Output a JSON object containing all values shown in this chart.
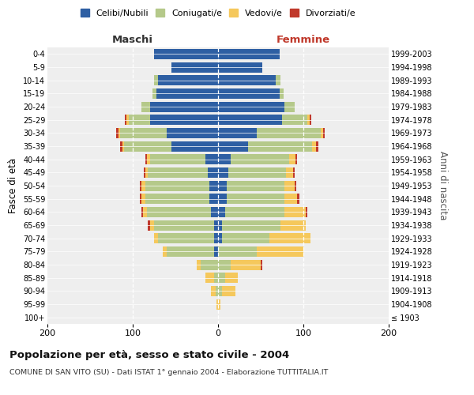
{
  "age_groups": [
    "100+",
    "95-99",
    "90-94",
    "85-89",
    "80-84",
    "75-79",
    "70-74",
    "65-69",
    "60-64",
    "55-59",
    "50-54",
    "45-49",
    "40-44",
    "35-39",
    "30-34",
    "25-29",
    "20-24",
    "15-19",
    "10-14",
    "5-9",
    "0-4"
  ],
  "birth_years": [
    "≤ 1903",
    "1904-1908",
    "1909-1913",
    "1914-1918",
    "1919-1923",
    "1924-1928",
    "1929-1933",
    "1934-1938",
    "1939-1943",
    "1944-1948",
    "1949-1953",
    "1954-1958",
    "1959-1963",
    "1964-1968",
    "1969-1973",
    "1974-1978",
    "1979-1983",
    "1984-1988",
    "1989-1993",
    "1994-1998",
    "1999-2003"
  ],
  "male": {
    "celibi": [
      0,
      0,
      0,
      0,
      0,
      5,
      5,
      5,
      8,
      10,
      10,
      12,
      15,
      55,
      60,
      80,
      80,
      72,
      70,
      55,
      75
    ],
    "coniugati": [
      0,
      0,
      3,
      5,
      20,
      55,
      65,
      70,
      75,
      75,
      75,
      70,
      65,
      55,
      55,
      25,
      10,
      5,
      5,
      0,
      0
    ],
    "vedovi": [
      0,
      2,
      5,
      10,
      5,
      5,
      5,
      5,
      5,
      5,
      5,
      3,
      3,
      2,
      2,
      2,
      0,
      0,
      0,
      0,
      0
    ],
    "divorziati": [
      0,
      0,
      0,
      0,
      0,
      0,
      0,
      2,
      2,
      2,
      2,
      2,
      2,
      3,
      2,
      2,
      0,
      0,
      0,
      0,
      0
    ]
  },
  "female": {
    "nubili": [
      0,
      0,
      0,
      0,
      0,
      0,
      5,
      5,
      8,
      10,
      10,
      12,
      15,
      35,
      45,
      75,
      78,
      72,
      68,
      52,
      72
    ],
    "coniugate": [
      0,
      0,
      5,
      8,
      15,
      45,
      55,
      68,
      70,
      68,
      68,
      68,
      68,
      75,
      75,
      30,
      12,
      5,
      5,
      0,
      0
    ],
    "vedove": [
      0,
      3,
      15,
      15,
      35,
      55,
      48,
      30,
      25,
      15,
      12,
      8,
      8,
      5,
      3,
      2,
      0,
      0,
      0,
      0,
      0
    ],
    "divorziate": [
      0,
      0,
      0,
      0,
      2,
      0,
      0,
      0,
      2,
      2,
      2,
      2,
      2,
      3,
      2,
      2,
      0,
      0,
      0,
      0,
      0
    ]
  },
  "colors": {
    "celibi": "#2e5fa3",
    "coniugati": "#b5c98a",
    "vedovi": "#f5c85c",
    "divorziati": "#c0392b"
  },
  "xlim": 200,
  "title": "Popolazione per età, sesso e stato civile - 2004",
  "subtitle": "COMUNE DI SAN VITO (SU) - Dati ISTAT 1° gennaio 2004 - Elaborazione TUTTITALIA.IT",
  "xlabel_left": "Maschi",
  "xlabel_right": "Femmine",
  "ylabel_left": "Fasce di età",
  "ylabel_right": "Anni di nascita",
  "legend_labels": [
    "Celibi/Nubili",
    "Coniugati/e",
    "Vedovi/e",
    "Divorziati/e"
  ],
  "background_color": "#ffffff",
  "plot_bg_color": "#eeeeee"
}
